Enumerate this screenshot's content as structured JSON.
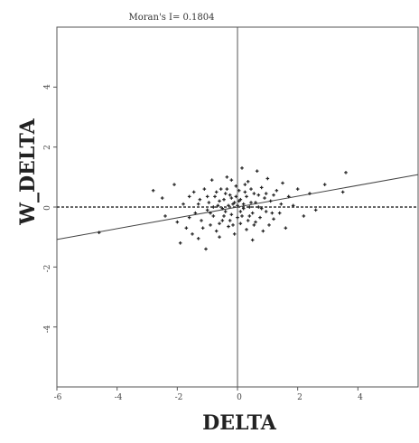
{
  "chart_data": {
    "type": "scatter",
    "title": "Moran's I= 0.1804",
    "xlabel": "DELTA",
    "ylabel": "W_DELTA",
    "xlim": [
      -6,
      6
    ],
    "ylim": [
      -6,
      6
    ],
    "x_ticks": [
      -6,
      -4,
      -2,
      0,
      2,
      4
    ],
    "x_tick_labels": [
      "-6",
      "-4",
      "-2",
      "0",
      "2",
      "4"
    ],
    "y_ticks": [
      -4,
      -2,
      0,
      2,
      4
    ],
    "y_tick_labels": [
      "-4",
      "-2",
      "0",
      "2",
      "4"
    ],
    "regression_line": {
      "slope": 0.1804,
      "intercept": 0.0
    },
    "zero_line_dashed": true,
    "grid": false,
    "series": [
      {
        "points": [
          [
            -4.6,
            -0.85
          ],
          [
            -2.8,
            0.55
          ],
          [
            -2.5,
            0.3
          ],
          [
            -2.4,
            -0.3
          ],
          [
            -2.1,
            0.75
          ],
          [
            -2.0,
            -0.5
          ],
          [
            -1.9,
            -1.2
          ],
          [
            -1.8,
            0.1
          ],
          [
            -1.7,
            -0.7
          ],
          [
            -1.6,
            0.35
          ],
          [
            -1.5,
            -0.9
          ],
          [
            -1.45,
            0.5
          ],
          [
            -1.4,
            -0.2
          ],
          [
            -1.3,
            -1.05
          ],
          [
            -1.25,
            0.25
          ],
          [
            -1.2,
            -0.45
          ],
          [
            -1.1,
            0.6
          ],
          [
            -1.05,
            -1.4
          ],
          [
            -1.0,
            -0.1
          ],
          [
            -0.95,
            0.15
          ],
          [
            -0.9,
            -0.6
          ],
          [
            -0.85,
            0.9
          ],
          [
            -0.8,
            -0.3
          ],
          [
            -0.75,
            0.35
          ],
          [
            -0.7,
            -0.8
          ],
          [
            -0.65,
            0.05
          ],
          [
            -0.6,
            -1.0
          ],
          [
            -0.55,
            0.6
          ],
          [
            -0.5,
            -0.45
          ],
          [
            -0.45,
            0.25
          ],
          [
            -0.4,
            -0.15
          ],
          [
            -0.35,
            1.0
          ],
          [
            -0.3,
            -0.65
          ],
          [
            -0.25,
            0.4
          ],
          [
            -0.2,
            -0.25
          ],
          [
            -0.15,
            0.1
          ],
          [
            -0.1,
            -0.9
          ],
          [
            -0.05,
            0.7
          ],
          [
            0.0,
            -0.35
          ],
          [
            0.05,
            0.2
          ],
          [
            0.1,
            -0.55
          ],
          [
            0.15,
            1.3
          ],
          [
            0.2,
            -0.05
          ],
          [
            0.25,
            0.5
          ],
          [
            0.3,
            -0.75
          ],
          [
            0.35,
            0.85
          ],
          [
            0.4,
            -0.3
          ],
          [
            0.45,
            0.15
          ],
          [
            0.5,
            -1.1
          ],
          [
            0.55,
            0.45
          ],
          [
            0.6,
            -0.5
          ],
          [
            0.65,
            1.2
          ],
          [
            0.7,
            0.0
          ],
          [
            0.75,
            -0.35
          ],
          [
            0.8,
            0.65
          ],
          [
            0.85,
            -0.8
          ],
          [
            0.9,
            0.3
          ],
          [
            0.95,
            -0.15
          ],
          [
            1.0,
            0.95
          ],
          [
            1.05,
            -0.6
          ],
          [
            1.1,
            0.2
          ],
          [
            1.2,
            -0.4
          ],
          [
            1.3,
            0.55
          ],
          [
            1.4,
            -0.2
          ],
          [
            1.5,
            0.8
          ],
          [
            1.6,
            -0.7
          ],
          [
            1.7,
            0.35
          ],
          [
            1.85,
            0.05
          ],
          [
            2.0,
            0.6
          ],
          [
            2.2,
            -0.3
          ],
          [
            2.4,
            0.45
          ],
          [
            2.6,
            -0.1
          ],
          [
            2.9,
            0.75
          ],
          [
            3.5,
            0.5
          ],
          [
            3.6,
            1.15
          ],
          [
            -0.3,
            0.05
          ],
          [
            -0.2,
            0.3
          ],
          [
            -0.1,
            0.15
          ],
          [
            0.0,
            0.05
          ],
          [
            0.1,
            0.25
          ],
          [
            0.2,
            0.1
          ],
          [
            -0.6,
            0.2
          ],
          [
            -0.4,
            0.45
          ],
          [
            0.3,
            0.35
          ],
          [
            0.4,
            0.0
          ],
          [
            -0.8,
            0.0
          ],
          [
            -1.0,
            0.35
          ],
          [
            0.6,
            0.15
          ],
          [
            0.8,
            -0.05
          ],
          [
            -0.25,
            -0.45
          ],
          [
            0.15,
            -0.3
          ],
          [
            -0.5,
            -0.05
          ],
          [
            0.5,
            -0.2
          ],
          [
            1.2,
            0.4
          ],
          [
            -1.3,
            0.1
          ],
          [
            -0.35,
            0.6
          ],
          [
            0.25,
            0.75
          ],
          [
            -0.7,
            0.5
          ],
          [
            0.95,
            0.45
          ],
          [
            -0.15,
            -0.6
          ],
          [
            0.05,
            0.55
          ],
          [
            -0.45,
            -0.3
          ],
          [
            0.35,
            -0.45
          ],
          [
            -0.05,
            0.35
          ],
          [
            0.45,
            0.6
          ],
          [
            -1.6,
            -0.35
          ],
          [
            1.45,
            0.1
          ],
          [
            -0.9,
            -0.2
          ],
          [
            0.7,
            0.4
          ],
          [
            -0.2,
            0.9
          ],
          [
            0.1,
            -0.15
          ],
          [
            -0.6,
            -0.55
          ],
          [
            0.55,
            -0.6
          ],
          [
            -1.15,
            -0.7
          ],
          [
            1.15,
            -0.2
          ]
        ]
      }
    ]
  }
}
